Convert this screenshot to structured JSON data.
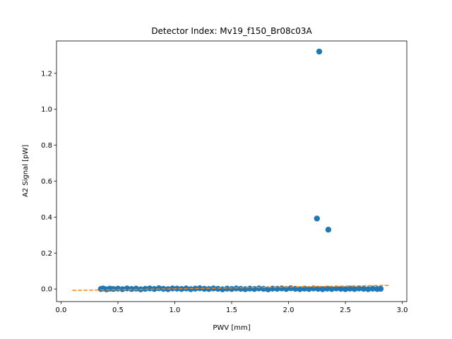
{
  "chart_data": {
    "type": "scatter",
    "title": "Detector Index: Mv19_f150_Br08c03A",
    "xlabel": "PWV [mm]",
    "ylabel": "A2 Signal [pW]",
    "xlim": [
      -0.04,
      3.04
    ],
    "ylim": [
      -0.07,
      1.38
    ],
    "xticks": [
      0.0,
      0.5,
      1.0,
      1.5,
      2.0,
      2.5,
      3.0
    ],
    "yticks": [
      0.0,
      0.2,
      0.4,
      0.6,
      0.8,
      1.0,
      1.2
    ],
    "grid": false,
    "legend": "none",
    "series": [
      {
        "kind": "scatter",
        "color": "#1f77b4",
        "points": [
          [
            0.35,
            0.0
          ],
          [
            0.37,
            0.003
          ],
          [
            0.4,
            -0.002
          ],
          [
            0.43,
            0.002
          ],
          [
            0.46,
            0.0
          ],
          [
            0.5,
            0.002
          ],
          [
            0.54,
            -0.001
          ],
          [
            0.58,
            0.003
          ],
          [
            0.62,
            0.0
          ],
          [
            0.66,
            0.002
          ],
          [
            0.7,
            -0.002
          ],
          [
            0.74,
            0.001
          ],
          [
            0.78,
            0.003
          ],
          [
            0.82,
            0.0
          ],
          [
            0.86,
            0.004
          ],
          [
            0.9,
            0.001
          ],
          [
            0.94,
            -0.001
          ],
          [
            0.98,
            0.003
          ],
          [
            1.02,
            0.002
          ],
          [
            1.06,
            0.0
          ],
          [
            1.1,
            0.003
          ],
          [
            1.14,
            -0.001
          ],
          [
            1.18,
            0.002
          ],
          [
            1.22,
            0.004
          ],
          [
            1.26,
            0.001
          ],
          [
            1.3,
            0.0
          ],
          [
            1.34,
            0.003
          ],
          [
            1.38,
            0.001
          ],
          [
            1.42,
            -0.002
          ],
          [
            1.46,
            0.002
          ],
          [
            1.5,
            0.0
          ],
          [
            1.54,
            0.003
          ],
          [
            1.58,
            0.001
          ],
          [
            1.62,
            -0.001
          ],
          [
            1.66,
            0.002
          ],
          [
            1.7,
            0.0
          ],
          [
            1.74,
            0.003
          ],
          [
            1.78,
            0.001
          ],
          [
            1.82,
            -0.002
          ],
          [
            1.86,
            0.002
          ],
          [
            1.9,
            0.001
          ],
          [
            1.94,
            0.003
          ],
          [
            1.98,
            0.0
          ],
          [
            2.02,
            0.004
          ],
          [
            2.06,
            0.001
          ],
          [
            2.1,
            -0.001
          ],
          [
            2.14,
            0.002
          ],
          [
            2.18,
            0.0
          ],
          [
            2.22,
            0.003
          ],
          [
            2.26,
            0.001
          ],
          [
            2.3,
            -0.001
          ],
          [
            2.34,
            0.002
          ],
          [
            2.38,
            0.0
          ],
          [
            2.42,
            0.003
          ],
          [
            2.46,
            0.001
          ],
          [
            2.5,
            -0.001
          ],
          [
            2.54,
            0.002
          ],
          [
            2.58,
            0.0
          ],
          [
            2.62,
            0.003
          ],
          [
            2.66,
            0.001
          ],
          [
            2.7,
            -0.001
          ],
          [
            2.74,
            0.002
          ],
          [
            2.78,
            0.0
          ],
          [
            2.81,
            0.001
          ],
          [
            2.25,
            0.392
          ],
          [
            2.35,
            0.33
          ],
          [
            2.27,
            1.321
          ]
        ]
      },
      {
        "kind": "line",
        "style": "dashed",
        "color": "#ff7f0e",
        "points": [
          [
            0.1,
            -0.008
          ],
          [
            2.88,
            0.02
          ]
        ]
      }
    ]
  }
}
